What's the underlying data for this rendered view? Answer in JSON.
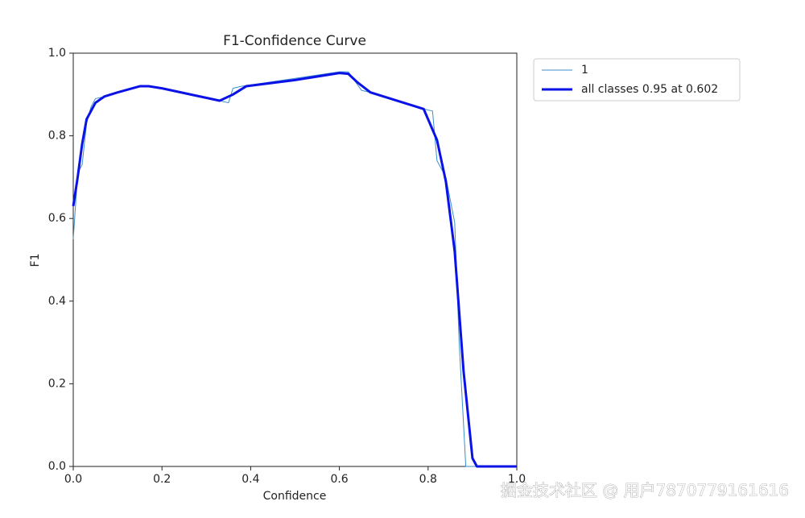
{
  "chart_data": {
    "type": "line",
    "title": "F1-Confidence Curve",
    "xlabel": "Confidence",
    "ylabel": "F1",
    "xlim": [
      0,
      1
    ],
    "ylim": [
      0,
      1
    ],
    "xticks": [
      {
        "value": 0,
        "label": "0.0"
      },
      0.2,
      0.4,
      0.6,
      0.8,
      {
        "value": 1,
        "label": "1.0"
      }
    ],
    "yticks": [
      {
        "value": 0,
        "label": "0.0"
      },
      0.2,
      0.4,
      0.6,
      0.8,
      {
        "value": 1,
        "label": "1.0"
      }
    ],
    "grid": false,
    "legend": "outside upper right",
    "series": [
      {
        "name": "1",
        "color": "#3b8fc9",
        "width": 1,
        "x": [
          0,
          0.01,
          0.02,
          0.03,
          0.04,
          0.05,
          0.07,
          0.15,
          0.17,
          0.33,
          0.35,
          0.36,
          0.38,
          0.6,
          0.62,
          0.65,
          0.67,
          0.79,
          0.81,
          0.82,
          0.84,
          0.86,
          0.87,
          0.88,
          0.885,
          0.9,
          1.0
        ],
        "values": [
          0.55,
          0.71,
          0.73,
          0.83,
          0.87,
          0.89,
          0.895,
          0.92,
          0.92,
          0.885,
          0.88,
          0.915,
          0.92,
          0.955,
          0.955,
          0.91,
          0.905,
          0.865,
          0.86,
          0.74,
          0.7,
          0.59,
          0.3,
          0.1,
          0,
          0,
          0
        ]
      },
      {
        "name": "all classes 0.95 at 0.602",
        "color": "#0a12e6",
        "width": 3,
        "x": [
          0,
          0.01,
          0.02,
          0.03,
          0.05,
          0.07,
          0.1,
          0.15,
          0.17,
          0.2,
          0.33,
          0.36,
          0.39,
          0.5,
          0.6,
          0.62,
          0.64,
          0.67,
          0.79,
          0.82,
          0.84,
          0.86,
          0.88,
          0.9,
          0.91,
          1.0
        ],
        "values": [
          0.63,
          0.7,
          0.78,
          0.84,
          0.88,
          0.895,
          0.905,
          0.92,
          0.92,
          0.915,
          0.885,
          0.9,
          0.92,
          0.935,
          0.952,
          0.95,
          0.93,
          0.905,
          0.865,
          0.79,
          0.69,
          0.52,
          0.23,
          0.02,
          0,
          0
        ]
      }
    ]
  },
  "watermark": "掘金技术社区 @ 用户7870779161616"
}
